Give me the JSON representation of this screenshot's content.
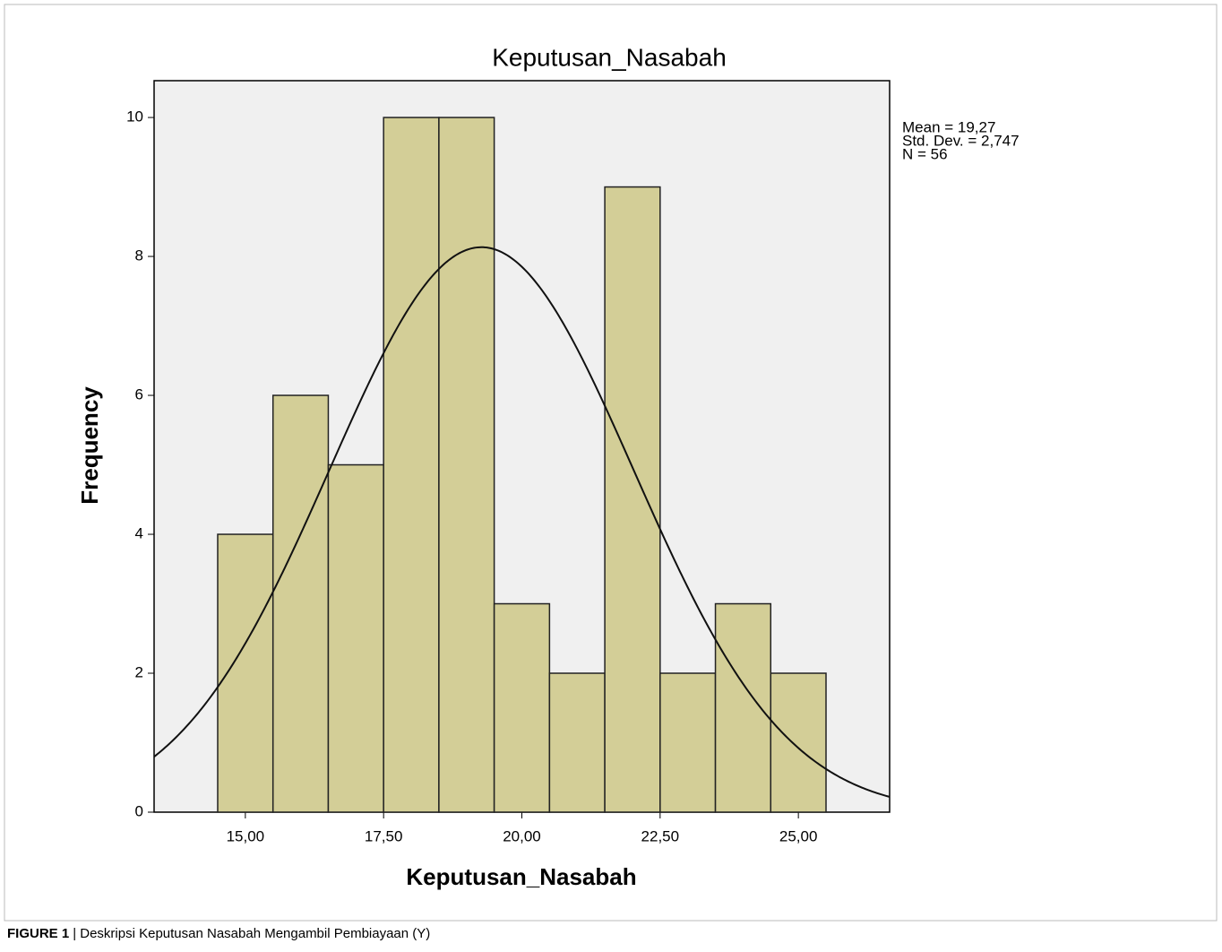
{
  "chart_data": {
    "type": "histogram",
    "title": "Keputusan_Nasabah",
    "x_label": "Keputusan_Nasabah",
    "y_label": "Frequency",
    "bins": [
      14.5,
      15.5,
      16.5,
      17.5,
      18.5,
      19.5,
      20.5,
      21.5,
      22.5,
      23.5,
      24.5,
      25.5
    ],
    "values": [
      4,
      6,
      5,
      10,
      10,
      3,
      2,
      9,
      2,
      3,
      2
    ],
    "color": "#d3ce97",
    "xlim": [
      13.35,
      26.65
    ],
    "ylim": [
      0,
      10.53
    ],
    "xticks": [
      {
        "value": 15,
        "label": "15,00"
      },
      {
        "value": 17.5,
        "label": "17,50"
      },
      {
        "value": 20,
        "label": "20,00"
      },
      {
        "value": 22.5,
        "label": "22,50"
      },
      {
        "value": 25,
        "label": "25,00"
      }
    ],
    "yticks": [
      0,
      2,
      4,
      6,
      8,
      10
    ],
    "normal_curve": {
      "mean": 19.27,
      "sd": 2.747,
      "n": 56
    },
    "stats": [
      "Mean = 19,27",
      "Std. Dev. = 2,747",
      "N = 56"
    ]
  },
  "caption": {
    "label": "FIGURE 1",
    "text": "| Deskripsi Keputusan Nasabah Mengambil Pembiayaan (Y)"
  }
}
